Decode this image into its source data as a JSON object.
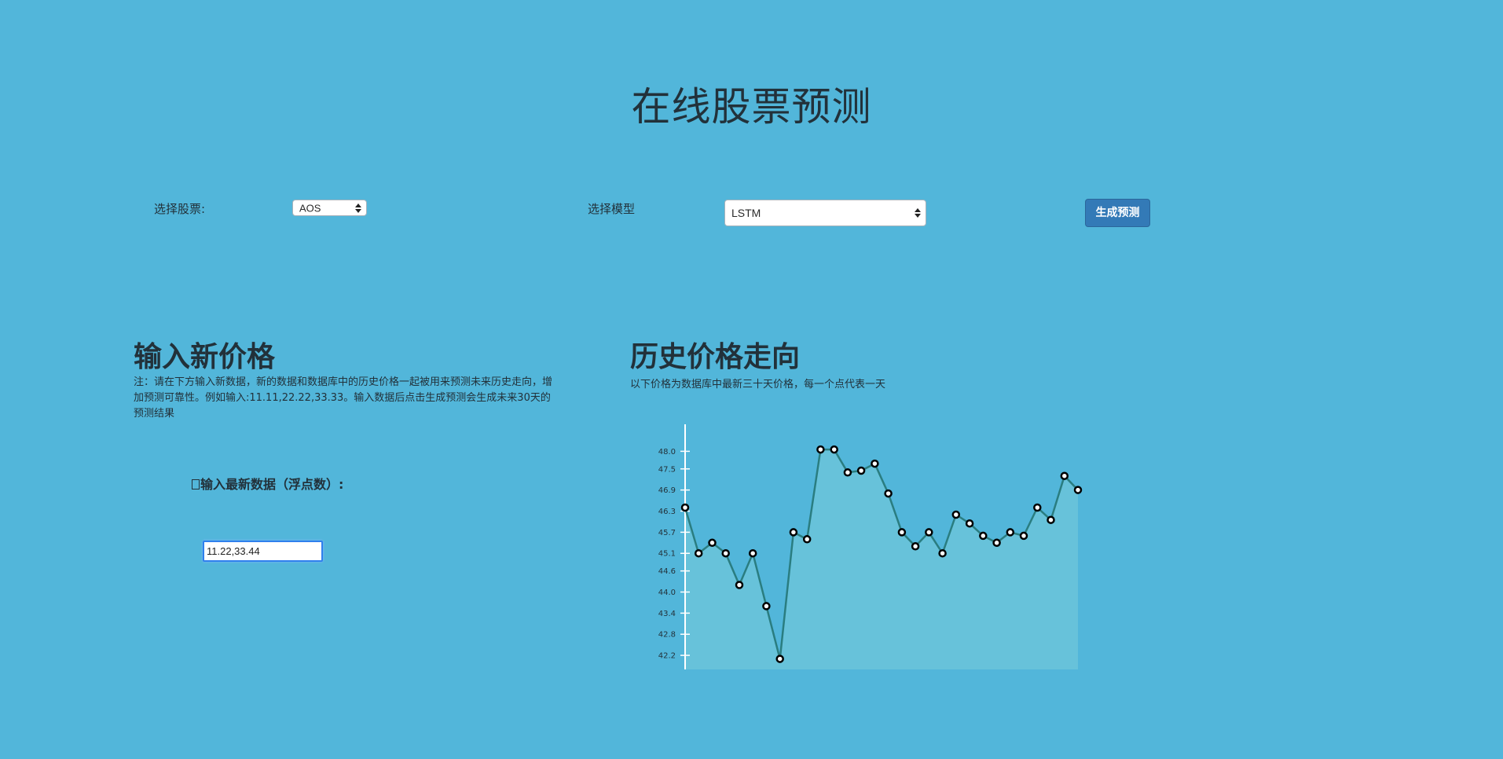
{
  "page": {
    "title": "在线股票预测"
  },
  "controls": {
    "stock_label": "选择股票:",
    "stock_selected": "AOS",
    "model_label": "选择模型",
    "model_selected": "LSTM",
    "predict_button": "生成预测"
  },
  "input_section": {
    "title": "输入新价格",
    "note": "注：请在下方输入新数据，新的数据和数据库中的历史价格一起被用来预测未来历史走向，增加预测可靠性。例如输入:11.11,22.22,33.33。输入数据后点击生成预测会生成未来30天的预测结果",
    "input_label": "输入最新数据（浮点数）:",
    "input_value": "11.22,33.44"
  },
  "history_section": {
    "title": "历史价格走向",
    "description": "以下价格为数据库中最新三十天价格，每一个点代表一天"
  },
  "colors": {
    "background": "#52b6da",
    "line": "#2a7d80",
    "area": "#67c2da",
    "button": "#337ab7"
  },
  "chart_data": {
    "type": "area",
    "x": [
      1,
      2,
      3,
      4,
      5,
      6,
      7,
      8,
      9,
      10,
      11,
      12,
      13,
      14,
      15,
      16,
      17,
      18,
      19,
      20,
      21,
      22,
      23,
      24,
      25,
      26,
      27,
      28,
      29,
      30
    ],
    "values": [
      46.4,
      45.1,
      45.4,
      45.1,
      44.2,
      45.1,
      43.6,
      42.1,
      45.7,
      45.5,
      48.05,
      48.05,
      47.4,
      47.45,
      47.65,
      46.8,
      45.7,
      45.3,
      45.7,
      45.1,
      46.2,
      45.95,
      45.6,
      45.4,
      45.7,
      45.6,
      46.4,
      46.05,
      47.3,
      46.9
    ],
    "y_ticks": [
      "42.2",
      "42.8",
      "43.4",
      "44.0",
      "44.6",
      "45.1",
      "45.7",
      "46.3",
      "46.9",
      "47.5",
      "48.0"
    ],
    "ylim": [
      41.8,
      48.5
    ],
    "title": "",
    "xlabel": "",
    "ylabel": "",
    "grid": false,
    "markers": true
  }
}
